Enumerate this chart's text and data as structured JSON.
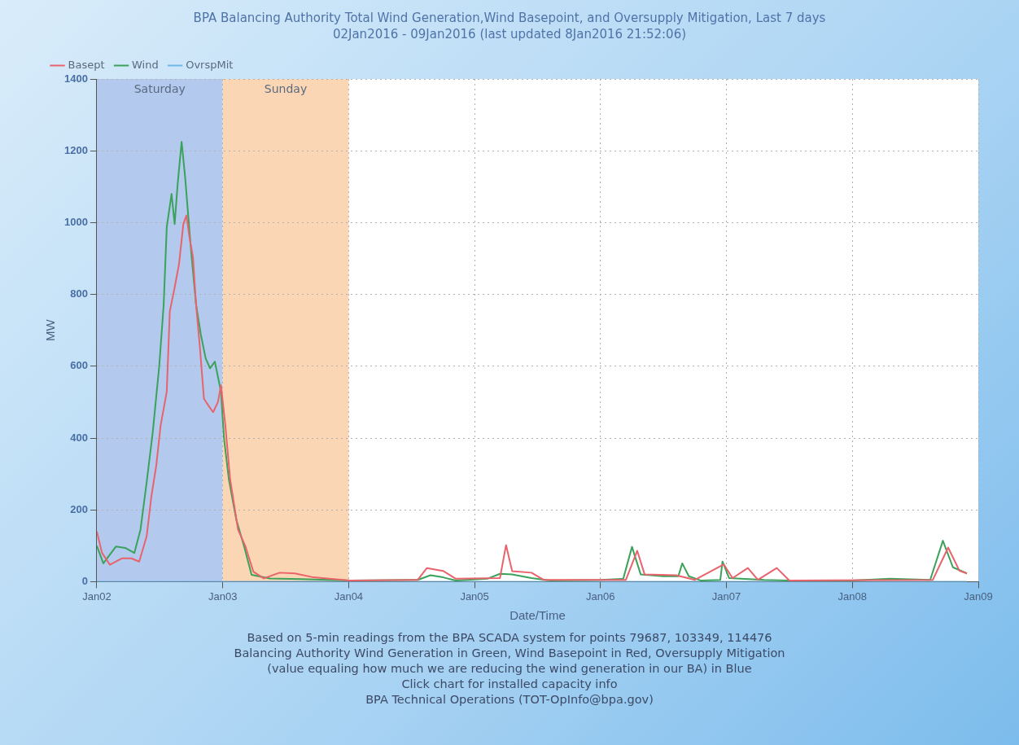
{
  "chart_data": {
    "type": "line",
    "title": "BPA Balancing Authority Total Wind Generation,Wind Basepoint, and Oversupply Mitigation, Last 7 days",
    "subtitle": "02Jan2016 - 09Jan2016 (last updated 8Jan2016 21:52:06)",
    "xlabel": "Date/Time",
    "ylabel": "MW",
    "xlim": [
      "2016-01-02",
      "2016-01-09"
    ],
    "xticks": [
      {
        "value": "2016-01-02",
        "label": "Jan02"
      },
      {
        "value": "2016-01-03",
        "label": "Jan03"
      },
      {
        "value": "2016-01-04",
        "label": "Jan04"
      },
      {
        "value": "2016-01-05",
        "label": "Jan05"
      },
      {
        "value": "2016-01-06",
        "label": "Jan06"
      },
      {
        "value": "2016-01-07",
        "label": "Jan07"
      },
      {
        "value": "2016-01-08",
        "label": "Jan08"
      },
      {
        "value": "2016-01-09",
        "label": "Jan09"
      }
    ],
    "ylim": [
      0,
      1400
    ],
    "yticks": [
      0,
      200,
      400,
      600,
      800,
      1000,
      1200,
      1400
    ],
    "grid": true,
    "legend": "top left",
    "marker": "none",
    "line_style": "solid",
    "bands": [
      {
        "axis": "x",
        "from": "2016-01-02",
        "to": "2016-01-03",
        "label": "Saturday",
        "color": "#b3c9ee"
      },
      {
        "axis": "x",
        "from": "2016-01-03",
        "to": "2016-01-04",
        "label": "Sunday",
        "color": "#fbd6b4"
      }
    ],
    "series": [
      {
        "name": "Basept",
        "color": "#e8636b",
        "x": [
          "2016-01-02T00:00",
          "2016-01-02T01:00",
          "2016-01-02T02:30",
          "2016-01-02T04:50",
          "2016-01-02T06:35",
          "2016-01-02T08:05",
          "2016-01-02T09:30",
          "2016-01-02T10:25",
          "2016-01-02T11:20",
          "2016-01-02T12:10",
          "2016-01-02T13:20",
          "2016-01-02T13:55",
          "2016-01-02T14:50",
          "2016-01-02T15:40",
          "2016-01-02T16:30",
          "2016-01-02T17:05",
          "2016-01-02T17:40",
          "2016-01-02T18:20",
          "2016-01-02T18:55",
          "2016-01-02T19:40",
          "2016-01-02T20:25",
          "2016-01-02T21:15",
          "2016-01-02T22:10",
          "2016-01-02T23:05",
          "2016-01-02T23:40",
          "2016-01-03T00:30",
          "2016-01-03T01:25",
          "2016-01-03T02:55",
          "2016-01-03T04:20",
          "2016-01-03T05:50",
          "2016-01-03T07:50",
          "2016-01-03T10:50",
          "2016-01-03T13:45",
          "2016-01-03T17:20",
          "2016-01-04T00:15",
          "2016-01-04T13:10",
          "2016-01-04T14:55",
          "2016-01-04T18:00",
          "2016-01-04T20:25",
          "2016-01-05T04:50",
          "2016-01-05T06:00",
          "2016-01-05T07:10",
          "2016-01-05T10:50",
          "2016-01-05T13:10",
          "2016-01-06T04:50",
          "2016-01-06T07:00",
          "2016-01-06T08:25",
          "2016-01-06T14:25",
          "2016-01-06T18:00",
          "2016-01-06T23:30",
          "2016-01-07T01:10",
          "2016-01-07T04:05",
          "2016-01-07T06:00",
          "2016-01-07T09:35",
          "2016-01-07T12:00",
          "2016-01-08T15:20",
          "2016-01-08T18:15",
          "2016-01-08T20:25",
          "2016-01-08T21:50"
        ],
        "values": [
          140,
          80,
          47,
          65,
          65,
          56,
          126,
          239,
          323,
          435,
          529,
          753,
          819,
          884,
          996,
          1020,
          959,
          903,
          772,
          650,
          510,
          491,
          472,
          500,
          547,
          435,
          285,
          145,
          98,
          28,
          9,
          25,
          23,
          12,
          3,
          5,
          38,
          30,
          8,
          10,
          102,
          29,
          25,
          5,
          5,
          86,
          20,
          18,
          5,
          48,
          10,
          38,
          5,
          38,
          3,
          5,
          95,
          30,
          23
        ]
      },
      {
        "name": "Wind",
        "color": "#3aa25a",
        "x": [
          "2016-01-02T00:00",
          "2016-01-02T01:15",
          "2016-01-02T03:40",
          "2016-01-02T05:25",
          "2016-01-02T07:10",
          "2016-01-02T08:20",
          "2016-01-02T09:30",
          "2016-01-02T10:40",
          "2016-01-02T11:55",
          "2016-01-02T12:45",
          "2016-01-02T13:20",
          "2016-01-02T14:15",
          "2016-01-02T14:50",
          "2016-01-02T15:25",
          "2016-01-02T16:10",
          "2016-01-02T16:50",
          "2016-01-02T17:30",
          "2016-01-02T18:05",
          "2016-01-02T18:55",
          "2016-01-02T19:50",
          "2016-01-02T20:45",
          "2016-01-02T21:35",
          "2016-01-02T22:30",
          "2016-01-02T23:40",
          "2016-01-03T00:15",
          "2016-01-03T01:10",
          "2016-01-03T02:35",
          "2016-01-03T04:05",
          "2016-01-03T05:30",
          "2016-01-03T09:00",
          "2016-01-03T15:00",
          "2016-01-04T00:15",
          "2016-01-04T13:10",
          "2016-01-04T15:35",
          "2016-01-04T18:00",
          "2016-01-04T20:25",
          "2016-01-05T02:25",
          "2016-01-05T04:50",
          "2016-01-05T07:10",
          "2016-01-05T10:50",
          "2016-01-05T14:25",
          "2016-01-06T00:00",
          "2016-01-06T04:20",
          "2016-01-06T06:00",
          "2016-01-06T07:40",
          "2016-01-06T12:00",
          "2016-01-06T14:50",
          "2016-01-06T15:35",
          "2016-01-06T16:50",
          "2016-01-06T19:10",
          "2016-01-06T22:50",
          "2016-01-06T23:15",
          "2016-01-07T00:30",
          "2016-01-07T07:10",
          "2016-01-07T12:00",
          "2016-01-08T00:00",
          "2016-01-08T07:10",
          "2016-01-08T14:50",
          "2016-01-08T17:15",
          "2016-01-08T19:10",
          "2016-01-08T21:50"
        ],
        "values": [
          100,
          51,
          98,
          94,
          80,
          145,
          276,
          416,
          603,
          772,
          987,
          1080,
          996,
          1108,
          1225,
          1127,
          1006,
          903,
          772,
          688,
          622,
          594,
          613,
          529,
          398,
          285,
          173,
          98,
          19,
          9,
          7,
          3,
          5,
          18,
          12,
          3,
          8,
          22,
          20,
          10,
          3,
          5,
          8,
          97,
          20,
          15,
          15,
          51,
          15,
          3,
          5,
          56,
          10,
          5,
          3,
          3,
          8,
          5,
          114,
          40,
          23
        ]
      },
      {
        "name": "OvrspMit",
        "color": "#6fb7e8",
        "x": [
          "2016-01-02T00:00",
          "2016-01-08T21:50"
        ],
        "values": [
          0,
          0
        ]
      }
    ],
    "annotations": [
      "Based on 5-min readings from the BPA SCADA system for points 79687, 103349, 114476",
      "Balancing Authority Wind Generation in Green, Wind Basepoint in Red, Oversupply Mitigation",
      "(value equaling how much we are reducing the wind generation in our BA) in Blue",
      "Click chart for installed capacity info",
      "BPA Technical Operations (TOT-OpInfo@bpa.gov)"
    ]
  }
}
